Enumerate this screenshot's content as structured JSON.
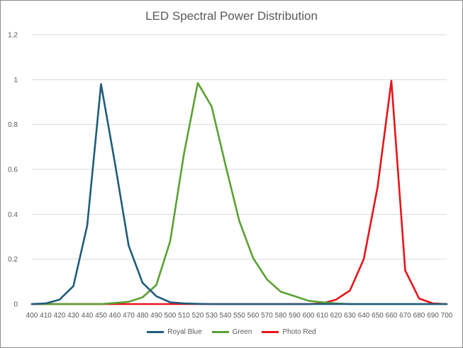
{
  "chart_data": {
    "type": "line",
    "title": "LED Spectral Power Distribution",
    "xlabel": "",
    "ylabel": "",
    "x": [
      400,
      410,
      420,
      430,
      440,
      450,
      460,
      470,
      480,
      490,
      500,
      510,
      520,
      530,
      540,
      550,
      560,
      570,
      580,
      590,
      600,
      610,
      620,
      630,
      640,
      650,
      660,
      670,
      680,
      690,
      700
    ],
    "ylim": [
      0,
      1.2
    ],
    "y_ticks": [
      "0",
      "0.2",
      "0.4",
      "0.6",
      "0.8",
      "1",
      "1.2"
    ],
    "y_tick_values": [
      0,
      0.2,
      0.4,
      0.6,
      0.8,
      1.0,
      1.2
    ],
    "grid": "horizontal",
    "legend_position": "bottom",
    "series": [
      {
        "name": "Royal Blue",
        "color": "#1f5c7a",
        "values": [
          0,
          0.003,
          0.02,
          0.08,
          0.35,
          0.98,
          0.63,
          0.26,
          0.095,
          0.035,
          0.008,
          0.003,
          0.001,
          0,
          0,
          0,
          0,
          0,
          0,
          0,
          0,
          0,
          0,
          0,
          0,
          0,
          0,
          0,
          0,
          0,
          0
        ]
      },
      {
        "name": "Green",
        "color": "#5aa132",
        "values": [
          0,
          0,
          0,
          0,
          0,
          0,
          0.005,
          0.01,
          0.03,
          0.085,
          0.28,
          0.67,
          0.985,
          0.88,
          0.62,
          0.37,
          0.205,
          0.11,
          0.055,
          0.035,
          0.015,
          0.008,
          0.003,
          0,
          0,
          0,
          0,
          0,
          0,
          0,
          0
        ]
      },
      {
        "name": "Photo Red",
        "color": "#e8141a",
        "values": [
          0,
          0,
          0,
          0,
          0,
          0,
          0,
          0,
          0,
          0,
          0,
          0,
          0,
          0,
          0,
          0,
          0,
          0,
          0,
          0,
          0,
          0.003,
          0.02,
          0.06,
          0.2,
          0.52,
          0.995,
          0.15,
          0.025,
          0.003,
          0
        ]
      }
    ]
  }
}
